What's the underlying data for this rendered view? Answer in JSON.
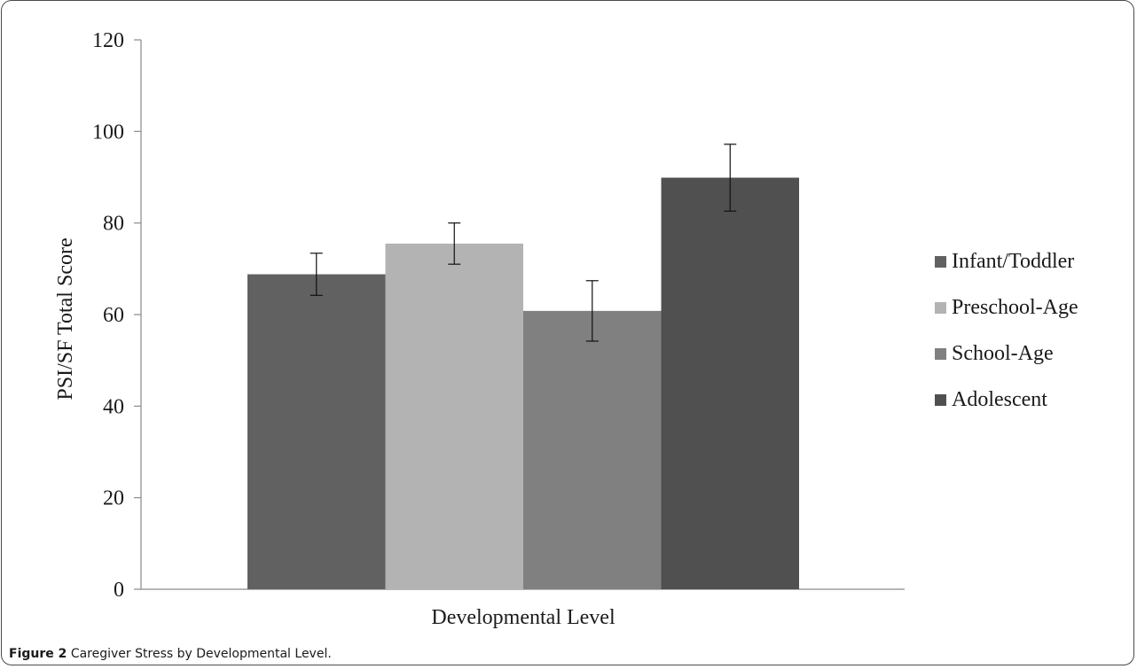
{
  "caption": {
    "label": "Figure 2",
    "text": "Caregiver Stress by Developmental Level",
    "suffix": "."
  },
  "chart_data": {
    "type": "bar",
    "title": "",
    "xlabel": "Developmental Level",
    "ylabel": "PSI/SF Total Score",
    "ylim": [
      0,
      120
    ],
    "yticks": [
      "0",
      "20",
      "40",
      "60",
      "80",
      "100",
      "120"
    ],
    "grid": false,
    "legend_position": "right",
    "categories": [
      "Developmental Level"
    ],
    "series": [
      {
        "name": "Infant/Toddler",
        "values": [
          68.8
        ],
        "error": [
          4.6
        ],
        "color": "#616161"
      },
      {
        "name": "Preschool-Age",
        "values": [
          75.5
        ],
        "error": [
          4.5
        ],
        "color": "#b3b3b3"
      },
      {
        "name": "School-Age",
        "values": [
          60.8
        ],
        "error": [
          6.6
        ],
        "color": "#808080"
      },
      {
        "name": "Adolescent",
        "values": [
          89.9
        ],
        "error": [
          7.3
        ],
        "color": "#505050"
      }
    ]
  }
}
